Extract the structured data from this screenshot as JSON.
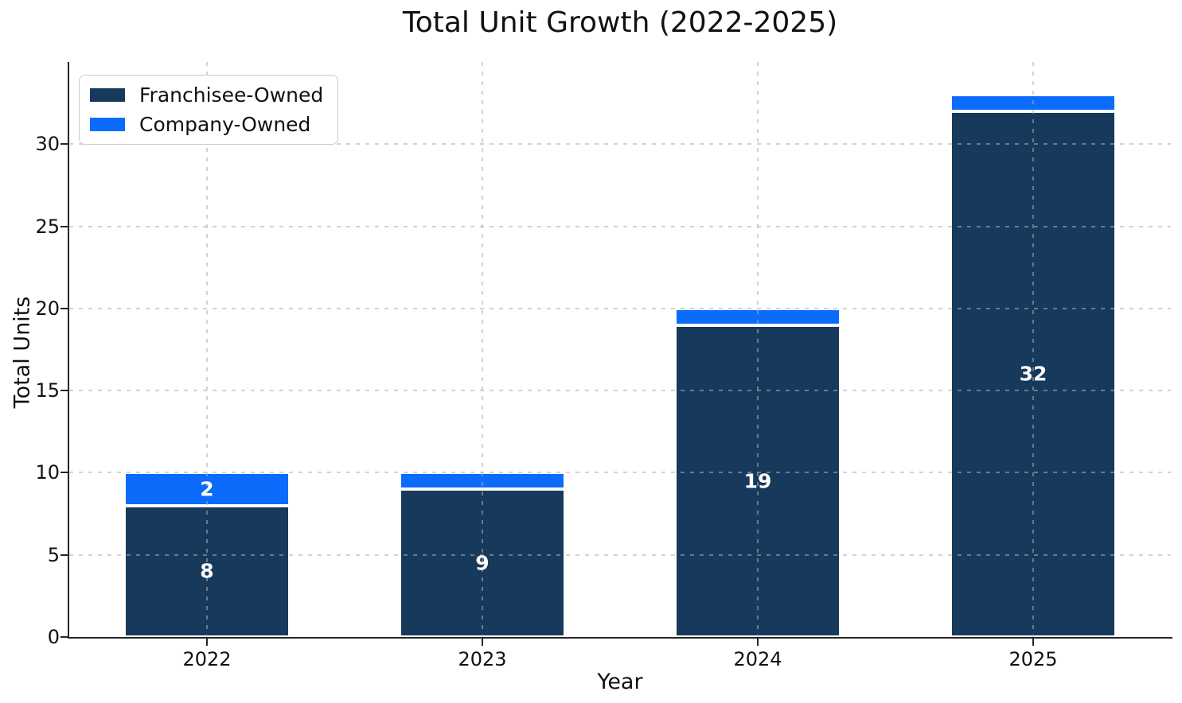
{
  "chart_data": {
    "type": "bar",
    "stacked": true,
    "title": "Total Unit Growth (2022-2025)",
    "xlabel": "Year",
    "ylabel": "Total Units",
    "categories": [
      "2022",
      "2023",
      "2024",
      "2025"
    ],
    "series": [
      {
        "name": "Franchisee-Owned",
        "color": "#17395C",
        "values": [
          8,
          9,
          19,
          32
        ],
        "labels": [
          "8",
          "9",
          "19",
          "32"
        ]
      },
      {
        "name": "Company-Owned",
        "color": "#0B6CFB",
        "values": [
          2,
          1,
          1,
          1
        ],
        "labels": [
          "2",
          "",
          "",
          ""
        ]
      }
    ],
    "totals": [
      10,
      10,
      20,
      33
    ],
    "yticks": [
      0,
      5,
      10,
      15,
      20,
      25,
      30
    ],
    "ylim": [
      0,
      35
    ],
    "grid": true,
    "grid_style": "dashed",
    "legend_position": "upper-left",
    "bar_label_color": "#ffffff",
    "background_color": "#ffffff",
    "spine_color": "#262626"
  }
}
